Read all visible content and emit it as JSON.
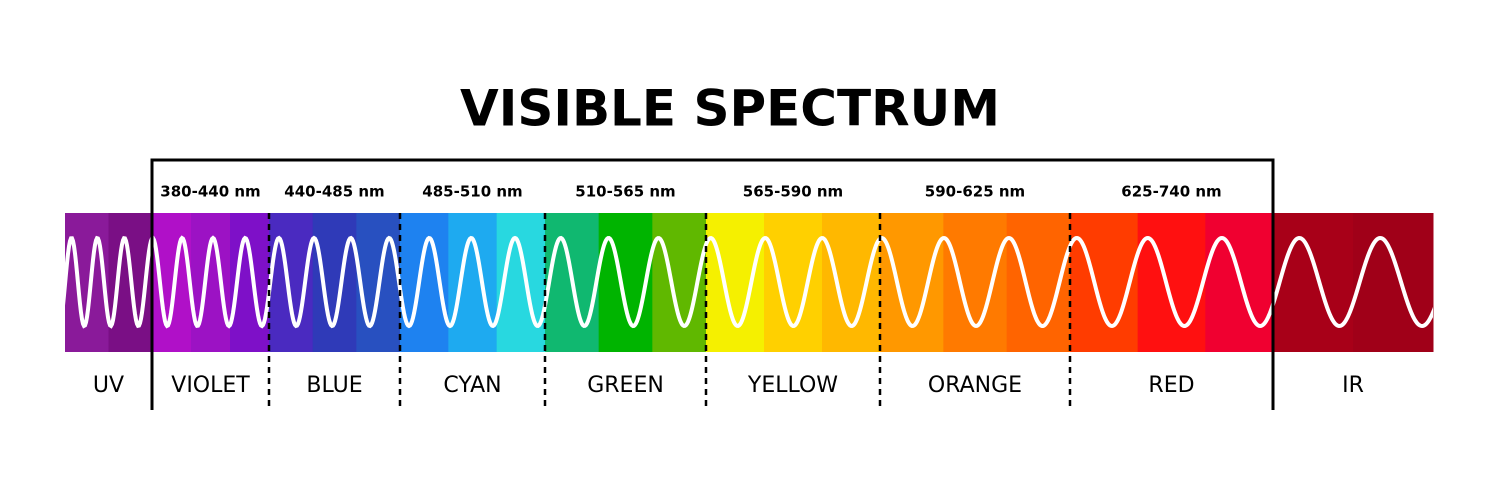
{
  "title": "VISIBLE SPECTRUM",
  "regions": [
    {
      "name": "UV"
    },
    {
      "name": "VIOLET",
      "range": "380-440 nm"
    },
    {
      "name": "BLUE",
      "range": "440-485 nm"
    },
    {
      "name": "CYAN",
      "range": "485-510 nm"
    },
    {
      "name": "GREEN",
      "range": "510-565 nm"
    },
    {
      "name": "YELLOW",
      "range": "565-590 nm"
    },
    {
      "name": "ORANGE",
      "range": "590-625 nm"
    },
    {
      "name": "RED",
      "range": "625-740 nm"
    },
    {
      "name": "IR"
    }
  ]
}
